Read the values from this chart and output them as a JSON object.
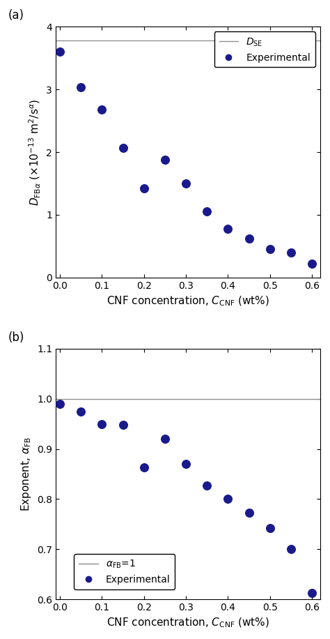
{
  "panel_a": {
    "x": [
      0.0,
      0.05,
      0.1,
      0.15,
      0.2,
      0.25,
      0.3,
      0.35,
      0.4,
      0.45,
      0.5,
      0.55,
      0.6
    ],
    "y": [
      3.6,
      3.03,
      2.68,
      2.07,
      1.42,
      1.88,
      1.5,
      1.06,
      0.78,
      0.62,
      0.45,
      0.4,
      0.22
    ],
    "DSE_value": 3.78,
    "ylabel": "$D_{\\mathrm{FB}\\alpha}$ ($\\times$10$^{-13}$ m$^2$/s$^{\\alpha}$)",
    "xlabel": "CNF concentration, $C_{\\mathrm{CNF}}$ (wt%)",
    "ylim": [
      0,
      4
    ],
    "xlim": [
      -0.01,
      0.62
    ],
    "yticks": [
      0,
      1,
      2,
      3,
      4
    ],
    "xticks": [
      0.0,
      0.1,
      0.2,
      0.3,
      0.4,
      0.5,
      0.6
    ],
    "legend_DSE": "$D_{\\mathrm{SE}}$",
    "legend_exp": "Experimental",
    "panel_label": "(a)"
  },
  "panel_b": {
    "x": [
      0.0,
      0.05,
      0.1,
      0.15,
      0.2,
      0.25,
      0.3,
      0.35,
      0.4,
      0.45,
      0.5,
      0.55,
      0.6
    ],
    "y": [
      0.99,
      0.975,
      0.95,
      0.948,
      0.863,
      0.92,
      0.87,
      0.827,
      0.801,
      0.773,
      0.742,
      0.7,
      0.613
    ],
    "alpha_line": 1.0,
    "ylabel": "Exponent, $\\alpha_{\\mathrm{FB}}$",
    "xlabel": "CNF concentration, $C_{\\mathrm{CNF}}$ (wt%)",
    "ylim": [
      0.6,
      1.1
    ],
    "xlim": [
      -0.01,
      0.62
    ],
    "yticks": [
      0.6,
      0.7,
      0.8,
      0.9,
      1.0,
      1.1
    ],
    "xticks": [
      0.0,
      0.1,
      0.2,
      0.3,
      0.4,
      0.5,
      0.6
    ],
    "legend_alpha": "$\\alpha_{\\mathrm{FB}}$=1",
    "legend_exp": "Experimental",
    "panel_label": "(b)"
  },
  "dot_color": "#1a1a8c",
  "dot_size": 70,
  "line_color": "#909090",
  "line_width": 1.0,
  "font_size": 11,
  "tick_font_size": 10,
  "legend_font_size": 10
}
